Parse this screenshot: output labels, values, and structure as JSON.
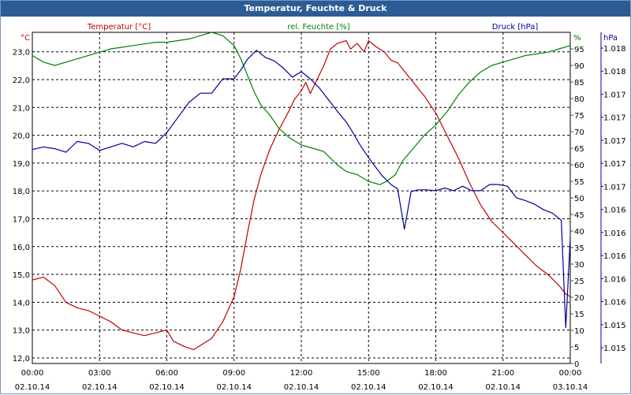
{
  "window": {
    "title": "Temperatur, Feuchte & Druck"
  },
  "chart_data": {
    "type": "line",
    "title": "Temperatur, Feuchte & Druck",
    "grid": true,
    "x_ticks": [
      {
        "time": "00:00",
        "date": "02.10.14"
      },
      {
        "time": "03:00",
        "date": "02.10.14"
      },
      {
        "time": "06:00",
        "date": "02.10.14"
      },
      {
        "time": "09:00",
        "date": "02.10.14"
      },
      {
        "time": "12:00",
        "date": "02.10.14"
      },
      {
        "time": "15:00",
        "date": "02.10.14"
      },
      {
        "time": "18:00",
        "date": "02.10.14"
      },
      {
        "time": "21:00",
        "date": "02.10.14"
      },
      {
        "time": "00:00",
        "date": "03.10.14"
      }
    ],
    "xlim": [
      0,
      24
    ],
    "axes": {
      "temperature": {
        "label": "Temperatur [°C]",
        "unit": "°C",
        "color": "#c00000",
        "ylim": [
          11.8,
          23.7
        ],
        "ticks": [
          "23,0",
          "22,0",
          "21,0",
          "20,0",
          "19,0",
          "18,0",
          "17,0",
          "16,0",
          "15,0",
          "14,0",
          "13,0",
          "12,0"
        ]
      },
      "humidity": {
        "label": "rel. Feuchte [%]",
        "unit": "%",
        "color": "#008000",
        "ylim": [
          0,
          100
        ],
        "ticks": [
          "95",
          "90",
          "85",
          "80",
          "75",
          "70",
          "65",
          "60",
          "55",
          "50",
          "45",
          "40",
          "35",
          "30",
          "25",
          "20",
          "15",
          "10",
          "5",
          "0"
        ]
      },
      "pressure": {
        "label": "Druck [hPa]",
        "unit": "hPa",
        "color": "#000099",
        "ylim": [
          1014.7,
          1018.4
        ],
        "ticks": [
          "1.018",
          "1.018",
          "1.017",
          "1.017",
          "1.017",
          "1.017",
          "1.017",
          "1.016",
          "1.016",
          "1.016",
          "1.016",
          "1.016",
          "1.015",
          "1.015"
        ]
      }
    },
    "series": [
      {
        "name": "Temperatur [°C]",
        "axis": "temperature",
        "color": "#c00000",
        "points": [
          [
            0,
            14.8
          ],
          [
            0.5,
            14.9
          ],
          [
            1,
            14.6
          ],
          [
            1.5,
            14.0
          ],
          [
            2,
            13.8
          ],
          [
            2.5,
            13.7
          ],
          [
            3,
            13.5
          ],
          [
            3.5,
            13.3
          ],
          [
            4,
            13.0
          ],
          [
            4.5,
            12.9
          ],
          [
            5,
            12.8
          ],
          [
            5.5,
            12.9
          ],
          [
            6,
            13.0
          ],
          [
            6.3,
            12.6
          ],
          [
            6.8,
            12.4
          ],
          [
            7.2,
            12.3
          ],
          [
            7.6,
            12.5
          ],
          [
            8,
            12.7
          ],
          [
            8.5,
            13.3
          ],
          [
            9,
            14.2
          ],
          [
            9.3,
            15.2
          ],
          [
            9.6,
            16.5
          ],
          [
            9.9,
            17.7
          ],
          [
            10.2,
            18.6
          ],
          [
            10.6,
            19.5
          ],
          [
            11,
            20.2
          ],
          [
            11.4,
            20.8
          ],
          [
            11.7,
            21.3
          ],
          [
            12,
            21.6
          ],
          [
            12.2,
            21.9
          ],
          [
            12.4,
            21.5
          ],
          [
            12.7,
            22.0
          ],
          [
            13,
            22.5
          ],
          [
            13.3,
            23.1
          ],
          [
            13.6,
            23.3
          ],
          [
            14,
            23.4
          ],
          [
            14.2,
            23.1
          ],
          [
            14.5,
            23.3
          ],
          [
            14.8,
            23.0
          ],
          [
            15,
            23.4
          ],
          [
            15.3,
            23.2
          ],
          [
            15.5,
            23.1
          ],
          [
            15.7,
            23.0
          ],
          [
            16,
            22.7
          ],
          [
            16.3,
            22.6
          ],
          [
            16.5,
            22.4
          ],
          [
            17,
            21.9
          ],
          [
            17.5,
            21.4
          ],
          [
            18,
            20.8
          ],
          [
            18.5,
            20.0
          ],
          [
            19,
            19.2
          ],
          [
            19.5,
            18.3
          ],
          [
            20,
            17.5
          ],
          [
            20.5,
            16.9
          ],
          [
            21,
            16.5
          ],
          [
            21.5,
            16.1
          ],
          [
            22,
            15.7
          ],
          [
            22.5,
            15.3
          ],
          [
            23,
            15.0
          ],
          [
            23.5,
            14.6
          ],
          [
            23.8,
            14.3
          ],
          [
            24,
            14.2
          ]
        ]
      },
      {
        "name": "rel. Feuchte [%]",
        "axis": "humidity",
        "color": "#008000",
        "points": [
          [
            0,
            93
          ],
          [
            0.5,
            91
          ],
          [
            1,
            90
          ],
          [
            1.5,
            91
          ],
          [
            2,
            92
          ],
          [
            2.5,
            93
          ],
          [
            3,
            94
          ],
          [
            3.5,
            95
          ],
          [
            4,
            95.5
          ],
          [
            4.5,
            96
          ],
          [
            5,
            96.5
          ],
          [
            5.5,
            97
          ],
          [
            6,
            97
          ],
          [
            6.5,
            97.5
          ],
          [
            7,
            98
          ],
          [
            7.5,
            99
          ],
          [
            8,
            100
          ],
          [
            8.5,
            99
          ],
          [
            9,
            96
          ],
          [
            9.3,
            92
          ],
          [
            9.6,
            87
          ],
          [
            9.9,
            82
          ],
          [
            10.2,
            78
          ],
          [
            10.6,
            75
          ],
          [
            11,
            71
          ],
          [
            11.5,
            68
          ],
          [
            12,
            66
          ],
          [
            12.5,
            65
          ],
          [
            13,
            64
          ],
          [
            13.3,
            62
          ],
          [
            13.6,
            60
          ],
          [
            14,
            58
          ],
          [
            14.5,
            57
          ],
          [
            15,
            55
          ],
          [
            15.5,
            54
          ],
          [
            15.8,
            55
          ],
          [
            16.2,
            57
          ],
          [
            16.5,
            61
          ],
          [
            17,
            65
          ],
          [
            17.5,
            69
          ],
          [
            18,
            72
          ],
          [
            18.5,
            76
          ],
          [
            19,
            81
          ],
          [
            19.5,
            85
          ],
          [
            20,
            88
          ],
          [
            20.5,
            90
          ],
          [
            21,
            91
          ],
          [
            21.5,
            92
          ],
          [
            22,
            93
          ],
          [
            22.5,
            93.5
          ],
          [
            23,
            94
          ],
          [
            23.5,
            95
          ],
          [
            24,
            96
          ]
        ]
      },
      {
        "name": "Druck [hPa]",
        "axis": "pressure",
        "color": "#000099",
        "points": [
          [
            0,
            1017.09
          ],
          [
            0.5,
            1017.12
          ],
          [
            1,
            1017.1
          ],
          [
            1.5,
            1017.06
          ],
          [
            2,
            1017.18
          ],
          [
            2.5,
            1017.16
          ],
          [
            3,
            1017.08
          ],
          [
            3.5,
            1017.12
          ],
          [
            4,
            1017.16
          ],
          [
            4.5,
            1017.12
          ],
          [
            5,
            1017.18
          ],
          [
            5.5,
            1017.16
          ],
          [
            6,
            1017.28
          ],
          [
            6.5,
            1017.45
          ],
          [
            7,
            1017.62
          ],
          [
            7.5,
            1017.72
          ],
          [
            8,
            1017.72
          ],
          [
            8.5,
            1017.88
          ],
          [
            9,
            1017.88
          ],
          [
            9.3,
            1017.98
          ],
          [
            9.6,
            1018.1
          ],
          [
            10,
            1018.2
          ],
          [
            10.4,
            1018.12
          ],
          [
            10.8,
            1018.08
          ],
          [
            11.2,
            1018.0
          ],
          [
            11.6,
            1017.9
          ],
          [
            12,
            1017.96
          ],
          [
            12.4,
            1017.88
          ],
          [
            12.8,
            1017.78
          ],
          [
            13.2,
            1017.65
          ],
          [
            13.6,
            1017.52
          ],
          [
            14,
            1017.4
          ],
          [
            14.3,
            1017.28
          ],
          [
            14.6,
            1017.15
          ],
          [
            15,
            1017.0
          ],
          [
            15.3,
            1016.9
          ],
          [
            15.6,
            1016.8
          ],
          [
            16,
            1016.7
          ],
          [
            16.3,
            1016.65
          ],
          [
            16.6,
            1016.2
          ],
          [
            16.9,
            1016.62
          ],
          [
            17.2,
            1016.64
          ],
          [
            17.6,
            1016.64
          ],
          [
            18,
            1016.63
          ],
          [
            18.4,
            1016.66
          ],
          [
            18.8,
            1016.63
          ],
          [
            19.2,
            1016.68
          ],
          [
            19.6,
            1016.63
          ],
          [
            20,
            1016.63
          ],
          [
            20.4,
            1016.7
          ],
          [
            20.8,
            1016.7
          ],
          [
            21.2,
            1016.68
          ],
          [
            21.6,
            1016.55
          ],
          [
            22,
            1016.52
          ],
          [
            22.4,
            1016.48
          ],
          [
            22.8,
            1016.42
          ],
          [
            23.2,
            1016.38
          ],
          [
            23.6,
            1016.3
          ],
          [
            23.8,
            1015.1
          ],
          [
            24,
            1016.1
          ]
        ]
      }
    ]
  }
}
